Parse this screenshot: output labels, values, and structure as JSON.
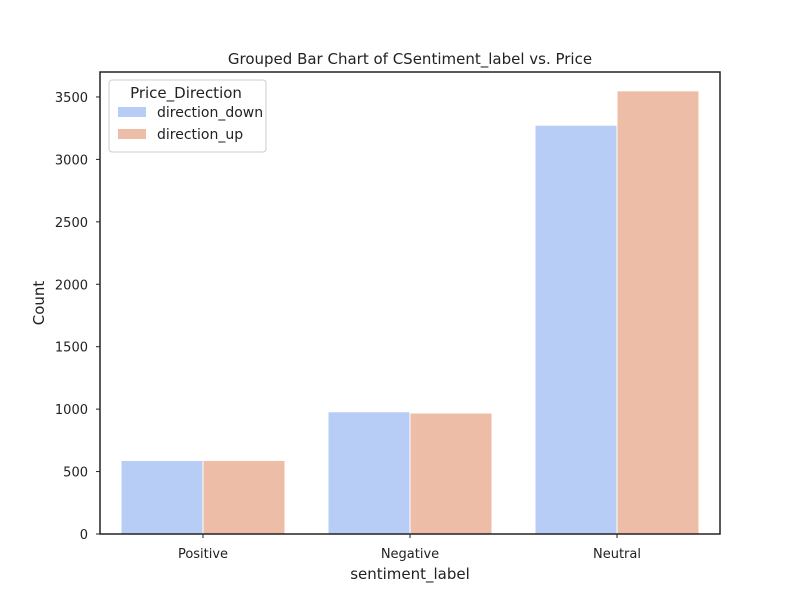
{
  "chart_data": {
    "type": "bar",
    "title": "Grouped Bar Chart of CSentiment_label vs. Price",
    "xlabel": "sentiment_label",
    "ylabel": "Count",
    "categories": [
      "Positive",
      "Negative",
      "Neutral"
    ],
    "series": [
      {
        "name": "direction_down",
        "color": "#b8cdf5",
        "values": [
          585,
          975,
          3270
        ]
      },
      {
        "name": "direction_up",
        "color": "#edbda7",
        "values": [
          585,
          965,
          3545
        ]
      }
    ],
    "ylim": [
      0,
      3700
    ],
    "yticks": [
      0,
      500,
      1000,
      1500,
      2000,
      2500,
      3000,
      3500
    ],
    "grid": false,
    "legend": {
      "title": "Price_Direction",
      "placement": "top-left"
    }
  }
}
